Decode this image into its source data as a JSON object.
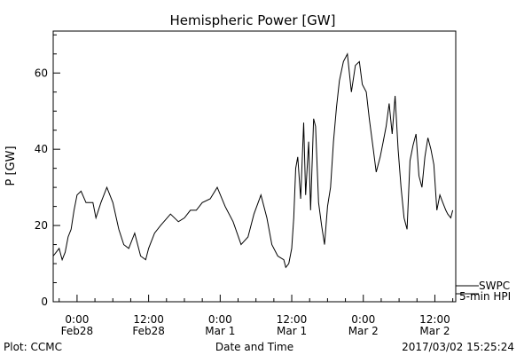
{
  "chart_data": {
    "type": "line",
    "title": "Hemispheric Power [GW]",
    "xlabel": "Date and Time",
    "ylabel": "P [GW]",
    "xlim": [
      "2017-02-27T20:00",
      "2017-03-02T15:30"
    ],
    "ylim": [
      0,
      71
    ],
    "y_ticks": [
      0,
      20,
      40,
      60
    ],
    "x_ticks": [
      {
        "time": "2017-02-28T00:00",
        "line1": "0:00",
        "line2": "Feb28"
      },
      {
        "time": "2017-02-28T12:00",
        "line1": "12:00",
        "line2": "Feb28"
      },
      {
        "time": "2017-03-01T00:00",
        "line1": "0:00",
        "line2": "Mar 1"
      },
      {
        "time": "2017-03-01T12:00",
        "line1": "12:00",
        "line2": "Mar 1"
      },
      {
        "time": "2017-03-02T00:00",
        "line1": "0:00",
        "line2": "Mar 2"
      },
      {
        "time": "2017-03-02T12:00",
        "line1": "12:00",
        "line2": "Mar 2"
      }
    ],
    "grid": false,
    "legend_position": "bottom-right",
    "series": [
      {
        "name": "SWPC",
        "color": "#000000",
        "x": [
          "2017-02-27T20:00",
          "2017-02-27T21:00",
          "2017-02-27T21:30",
          "2017-02-27T22:00",
          "2017-02-27T22:30",
          "2017-02-27T23:00",
          "2017-02-27T23:30",
          "2017-02-28T00:00",
          "2017-02-28T00:40",
          "2017-02-28T01:30",
          "2017-02-28T02:40",
          "2017-02-28T03:10",
          "2017-02-28T04:00",
          "2017-02-28T05:00",
          "2017-02-28T06:00",
          "2017-02-28T07:00",
          "2017-02-28T07:50",
          "2017-02-28T08:40",
          "2017-02-28T09:40",
          "2017-02-28T10:40",
          "2017-02-28T11:30",
          "2017-02-28T12:00",
          "2017-02-28T13:00",
          "2017-02-28T14:00",
          "2017-02-28T15:40",
          "2017-02-28T17:00",
          "2017-02-28T18:00",
          "2017-02-28T19:00",
          "2017-02-28T20:00",
          "2017-02-28T21:00",
          "2017-02-28T22:20",
          "2017-02-28T23:30",
          "2017-03-01T00:50",
          "2017-03-01T02:10",
          "2017-03-01T03:30",
          "2017-03-01T04:40",
          "2017-03-01T05:40",
          "2017-03-01T06:50",
          "2017-03-01T07:50",
          "2017-03-01T08:40",
          "2017-03-01T09:40",
          "2017-03-01T10:40",
          "2017-03-01T11:00",
          "2017-03-01T11:30",
          "2017-03-01T12:00",
          "2017-03-01T12:20",
          "2017-03-01T12:40",
          "2017-03-01T13:00",
          "2017-03-01T13:30",
          "2017-03-01T14:00",
          "2017-03-01T14:20",
          "2017-03-01T14:50",
          "2017-03-01T15:10",
          "2017-03-01T15:40",
          "2017-03-01T16:00",
          "2017-03-01T16:30",
          "2017-03-01T17:00",
          "2017-03-01T17:30",
          "2017-03-01T18:00",
          "2017-03-01T18:30",
          "2017-03-01T19:00",
          "2017-03-01T19:30",
          "2017-03-01T20:00",
          "2017-03-01T20:40",
          "2017-03-01T21:20",
          "2017-03-01T22:00",
          "2017-03-01T22:40",
          "2017-03-01T23:20",
          "2017-03-01T23:50",
          "2017-03-02T00:30",
          "2017-03-02T01:00",
          "2017-03-02T01:40",
          "2017-03-02T02:10",
          "2017-03-02T02:50",
          "2017-03-02T03:20",
          "2017-03-02T03:50",
          "2017-03-02T04:20",
          "2017-03-02T04:50",
          "2017-03-02T05:20",
          "2017-03-02T05:50",
          "2017-03-02T06:20",
          "2017-03-02T06:50",
          "2017-03-02T07:20",
          "2017-03-02T07:50",
          "2017-03-02T08:20",
          "2017-03-02T08:50",
          "2017-03-02T09:20",
          "2017-03-02T09:50",
          "2017-03-02T10:20",
          "2017-03-02T10:50",
          "2017-03-02T11:20",
          "2017-03-02T11:50",
          "2017-03-02T12:20",
          "2017-03-02T12:50",
          "2017-03-02T13:20",
          "2017-03-02T13:50",
          "2017-03-02T14:10",
          "2017-03-02T14:40",
          "2017-03-02T15:00"
        ],
        "values": [
          12,
          14,
          11,
          13,
          17,
          19,
          24,
          28,
          29,
          26,
          26,
          22,
          26,
          30,
          26,
          19,
          15,
          14,
          18,
          12,
          11,
          14,
          18,
          20,
          23,
          21,
          22,
          24,
          24,
          26,
          27,
          30,
          25,
          21,
          15,
          17,
          23,
          28,
          22,
          15,
          12,
          11,
          9,
          10,
          14,
          22,
          35,
          38,
          27,
          47,
          28,
          42,
          24,
          48,
          46,
          26,
          20,
          15,
          25,
          30,
          42,
          51,
          58,
          63,
          65,
          55,
          62,
          63,
          57,
          55,
          48,
          40,
          34,
          38,
          42,
          46,
          52,
          44,
          54,
          40,
          30,
          22,
          19,
          37,
          41,
          44,
          33,
          30,
          38,
          43,
          40,
          36,
          24,
          28,
          26,
          24,
          23,
          22,
          24
        ]
      },
      {
        "name": "5-min HPI",
        "color": "#000000",
        "x": [],
        "values": []
      }
    ]
  },
  "footer": {
    "left": "Plot: CCMC",
    "right": "2017/03/02 15:25:24"
  }
}
